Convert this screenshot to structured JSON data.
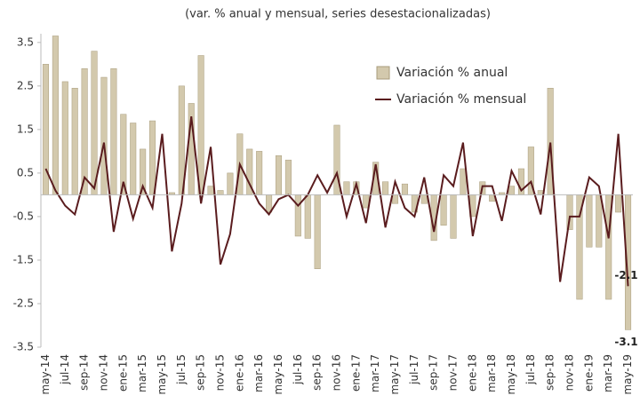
{
  "chart_data": {
    "type": "bar-line",
    "title": "(var. % anual y mensual, series desestacionalizadas)",
    "categories": [
      "may-14",
      null,
      "jul-14",
      null,
      "sep-14",
      null,
      "nov-14",
      null,
      "ene-15",
      null,
      "mar-15",
      null,
      "may-15",
      null,
      "jul-15",
      null,
      "sep-15",
      null,
      "nov-15",
      null,
      "ene-16",
      null,
      "mar-16",
      null,
      "may-16",
      null,
      "jul-16",
      null,
      "sep-16",
      null,
      "nov-16",
      null,
      "ene-17",
      null,
      "mar-17",
      null,
      "may-17",
      null,
      "jul-17",
      null,
      "sep-17",
      null,
      "nov-17",
      null,
      "ene-18",
      null,
      "mar-18",
      null,
      "may-18",
      null,
      "jul-18",
      null,
      "sep-18",
      null,
      "nov-18",
      null,
      "ene-19",
      null,
      "mar-19",
      null,
      "may-19"
    ],
    "series": [
      {
        "name": "Variación % anual",
        "kind": "bar",
        "color": "#d3c9ad",
        "values": [
          3.0,
          3.65,
          2.6,
          2.45,
          2.9,
          3.3,
          2.7,
          2.9,
          1.85,
          1.65,
          1.05,
          1.7,
          0.0,
          0.05,
          2.5,
          2.1,
          3.2,
          0.2,
          0.1,
          0.5,
          1.4,
          1.05,
          1.0,
          -0.4,
          0.9,
          0.8,
          -0.95,
          -1.0,
          -1.7,
          0.0,
          1.6,
          0.3,
          0.3,
          -0.3,
          0.75,
          0.3,
          -0.2,
          0.25,
          -0.4,
          -0.2,
          -1.05,
          -0.7,
          -1.0,
          0.6,
          -0.5,
          0.3,
          -0.15,
          0.05,
          0.2,
          0.6,
          1.1,
          0.1,
          2.45,
          0.0,
          -0.8,
          -2.4,
          -1.2,
          -1.2,
          -2.4,
          -0.4,
          -3.1
        ]
      },
      {
        "name": "Variación % mensual",
        "kind": "line",
        "color": "#5a1c1e",
        "values": [
          0.6,
          0.1,
          -0.25,
          -0.45,
          0.4,
          0.15,
          1.2,
          -0.85,
          0.3,
          -0.55,
          0.2,
          -0.3,
          1.4,
          -1.3,
          -0.2,
          1.8,
          -0.2,
          1.1,
          -1.6,
          -0.9,
          0.7,
          0.25,
          -0.2,
          -0.45,
          -0.1,
          0.0,
          -0.25,
          0.0,
          0.45,
          0.05,
          0.5,
          -0.5,
          0.25,
          -0.65,
          0.7,
          -0.75,
          0.3,
          -0.3,
          -0.5,
          0.4,
          -0.85,
          0.45,
          0.2,
          1.2,
          -0.95,
          0.2,
          0.2,
          -0.6,
          0.55,
          0.1,
          0.3,
          -0.45,
          1.2,
          -2.0,
          -0.5,
          -0.5,
          0.4,
          0.2,
          -1.0,
          1.4,
          -2.1
        ]
      }
    ],
    "ylim": [
      -3.5,
      3.7
    ],
    "yticks": [
      -3.5,
      -2.5,
      -1.5,
      -0.5,
      0.5,
      1.5,
      2.5,
      3.5
    ],
    "grid": false,
    "legend": "top-right",
    "labeled_point": 60
  }
}
